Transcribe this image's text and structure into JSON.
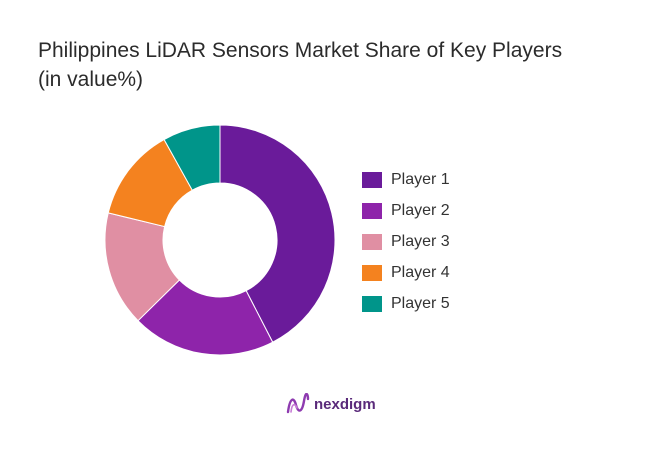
{
  "chart_data": {
    "type": "pie",
    "title_lines": [
      "Philippines LiDAR Sensors Market Share of Key Players",
      "(in value%)"
    ],
    "donut": true,
    "legend_position": "right",
    "categories": [
      "Player 1",
      "Player 2",
      "Player 3",
      "Player 4",
      "Player 5"
    ],
    "values": [
      42,
      20,
      16,
      13,
      8
    ],
    "colors": [
      "#6a1b9a",
      "#8e24aa",
      "#e08fa3",
      "#f4821f",
      "#00958a"
    ]
  },
  "brand": {
    "name": "nexdigm",
    "color": "#5a2a7a",
    "icon": "nexdigm-logo-icon"
  }
}
